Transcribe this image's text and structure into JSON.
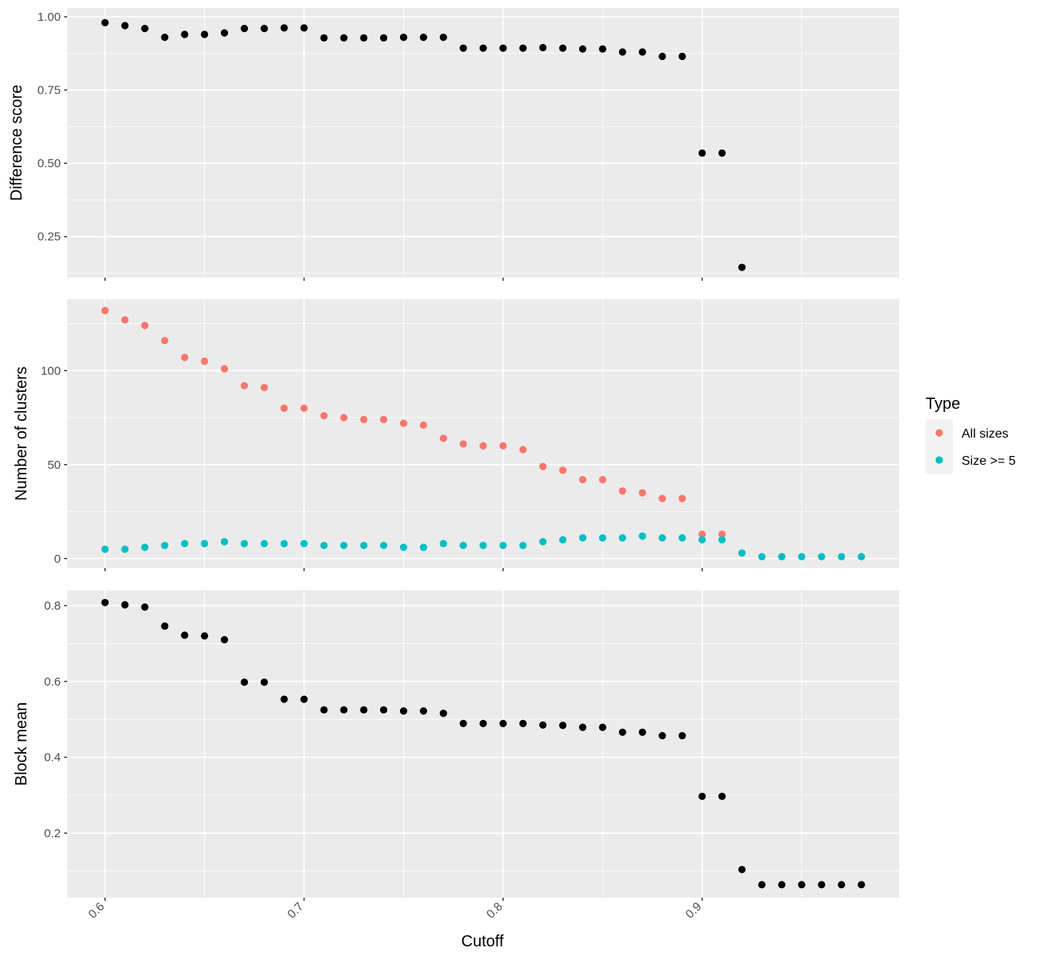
{
  "chart_data": [
    {
      "type": "scatter",
      "ylabel": "Difference score",
      "ylim": [
        0.11,
        1.03
      ],
      "yticks": [
        0.25,
        0.5,
        0.75,
        1.0
      ],
      "ytick_labels": [
        "0.25",
        "0.50",
        "0.75",
        "1.00"
      ],
      "series": [
        {
          "color": "#000000",
          "x": [
            0.6,
            0.61,
            0.62,
            0.63,
            0.64,
            0.65,
            0.66,
            0.67,
            0.68,
            0.69,
            0.7,
            0.71,
            0.72,
            0.73,
            0.74,
            0.75,
            0.76,
            0.77,
            0.78,
            0.79,
            0.8,
            0.81,
            0.82,
            0.83,
            0.84,
            0.85,
            0.86,
            0.87,
            0.88,
            0.89,
            0.9,
            0.91,
            0.92
          ],
          "y": [
            0.98,
            0.97,
            0.96,
            0.93,
            0.94,
            0.94,
            0.945,
            0.96,
            0.96,
            0.962,
            0.962,
            0.928,
            0.928,
            0.928,
            0.928,
            0.93,
            0.93,
            0.93,
            0.893,
            0.893,
            0.893,
            0.893,
            0.895,
            0.893,
            0.89,
            0.89,
            0.88,
            0.88,
            0.865,
            0.865,
            0.535,
            0.535,
            0.145
          ]
        }
      ]
    },
    {
      "type": "scatter",
      "ylabel": "Number of clusters",
      "ylim": [
        -5,
        138
      ],
      "yticks": [
        0,
        50,
        100
      ],
      "ytick_labels": [
        "0",
        "50",
        "100"
      ],
      "legend": {
        "title": "Type",
        "position": "right"
      },
      "series": [
        {
          "name": "All sizes",
          "color": "#F8766D",
          "x": [
            0.6,
            0.61,
            0.62,
            0.63,
            0.64,
            0.65,
            0.66,
            0.67,
            0.68,
            0.69,
            0.7,
            0.71,
            0.72,
            0.73,
            0.74,
            0.75,
            0.76,
            0.77,
            0.78,
            0.79,
            0.8,
            0.81,
            0.82,
            0.83,
            0.84,
            0.85,
            0.86,
            0.87,
            0.88,
            0.89,
            0.9,
            0.91
          ],
          "y": [
            132,
            127,
            124,
            116,
            107,
            105,
            101,
            92,
            91,
            80,
            80,
            76,
            75,
            74,
            74,
            72,
            71,
            64,
            61,
            60,
            60,
            58,
            49,
            47,
            42,
            42,
            36,
            35,
            32,
            32,
            13,
            13
          ]
        },
        {
          "name": "Size >= 5",
          "color": "#00BFC4",
          "x": [
            0.6,
            0.61,
            0.62,
            0.63,
            0.64,
            0.65,
            0.66,
            0.67,
            0.68,
            0.69,
            0.7,
            0.71,
            0.72,
            0.73,
            0.74,
            0.75,
            0.76,
            0.77,
            0.78,
            0.79,
            0.8,
            0.81,
            0.82,
            0.83,
            0.84,
            0.85,
            0.86,
            0.87,
            0.88,
            0.89,
            0.9,
            0.91,
            0.92,
            0.93,
            0.94,
            0.95,
            0.96,
            0.97,
            0.98
          ],
          "y": [
            5,
            5,
            6,
            7,
            8,
            8,
            9,
            8,
            8,
            8,
            8,
            7,
            7,
            7,
            7,
            6,
            6,
            8,
            7,
            7,
            7,
            7,
            9,
            10,
            11,
            11,
            11,
            12,
            11,
            11,
            10,
            10,
            3,
            1,
            1,
            1,
            1,
            1,
            1
          ]
        }
      ]
    },
    {
      "type": "scatter",
      "ylabel": "Block mean",
      "xlabel": "Cutoff",
      "ylim": [
        0.03,
        0.84
      ],
      "yticks": [
        0.2,
        0.4,
        0.6,
        0.8
      ],
      "ytick_labels": [
        "0.2",
        "0.4",
        "0.6",
        "0.8"
      ],
      "series": [
        {
          "color": "#000000",
          "x": [
            0.6,
            0.61,
            0.62,
            0.63,
            0.64,
            0.65,
            0.66,
            0.67,
            0.68,
            0.69,
            0.7,
            0.71,
            0.72,
            0.73,
            0.74,
            0.75,
            0.76,
            0.77,
            0.78,
            0.79,
            0.8,
            0.81,
            0.82,
            0.83,
            0.84,
            0.85,
            0.86,
            0.87,
            0.88,
            0.89,
            0.9,
            0.91,
            0.92,
            0.93,
            0.94,
            0.95,
            0.96,
            0.97,
            0.98
          ],
          "y": [
            0.808,
            0.802,
            0.796,
            0.746,
            0.722,
            0.72,
            0.71,
            0.598,
            0.598,
            0.553,
            0.553,
            0.525,
            0.525,
            0.525,
            0.525,
            0.522,
            0.522,
            0.516,
            0.489,
            0.489,
            0.489,
            0.489,
            0.485,
            0.484,
            0.479,
            0.479,
            0.466,
            0.466,
            0.457,
            0.457,
            0.297,
            0.297,
            0.104,
            0.064,
            0.064,
            0.064,
            0.064,
            0.064,
            0.064
          ]
        }
      ]
    }
  ],
  "x_axis": {
    "xlim": [
      0.581,
      0.999
    ],
    "ticks": [
      0.6,
      0.7,
      0.8,
      0.9
    ],
    "tick_labels": [
      "0.6",
      "0.7",
      "0.8",
      "0.9"
    ],
    "label": "Cutoff"
  }
}
